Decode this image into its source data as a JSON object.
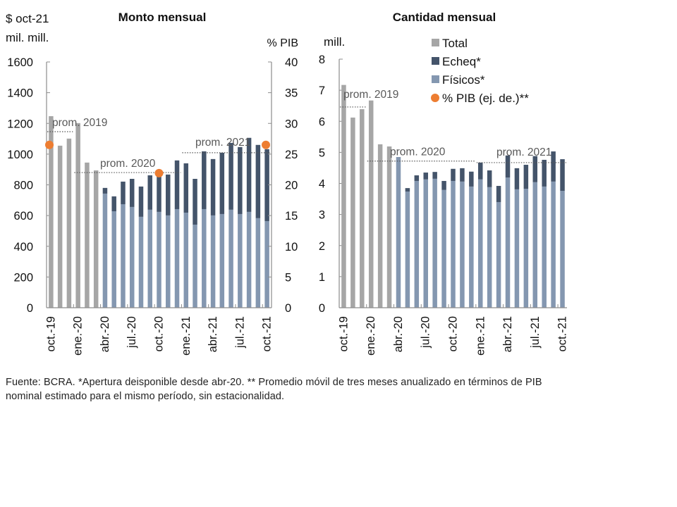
{
  "chart_data": [
    {
      "type": "bar",
      "stacked": true,
      "title": "Monto mensual",
      "ylabel": "$ oct-21\nmil. mill.",
      "ylabel_lines": [
        "$ oct-21",
        "mil. mill."
      ],
      "y2label": "% PIB",
      "ylim": [
        0,
        1600
      ],
      "yticks": [
        0,
        200,
        400,
        600,
        800,
        1000,
        1200,
        1400,
        1600
      ],
      "y2lim": [
        0,
        40
      ],
      "y2ticks": [
        0,
        5,
        10,
        15,
        20,
        25,
        30,
        35,
        40
      ],
      "grid": false,
      "categories": [
        "oct-19",
        "nov-19",
        "dic-19",
        "ene-20",
        "feb-20",
        "mar-20",
        "abr-20",
        "may-20",
        "jun-20",
        "jul-20",
        "ago-20",
        "sep-20",
        "oct-20",
        "nov-20",
        "dic-20",
        "ene-21",
        "feb-21",
        "mar-21",
        "abr-21",
        "may-21",
        "jun-21",
        "jul-21",
        "ago-21",
        "sep-21",
        "oct-21"
      ],
      "xtick_labels": [
        "oct.-19",
        "ene.-20",
        "abr.-20",
        "jul.-20",
        "oct.-20",
        "ene.-21",
        "abr.-21",
        "jul.-21",
        "oct.-21"
      ],
      "xtick_indices": [
        0,
        3,
        6,
        9,
        12,
        15,
        18,
        21,
        24
      ],
      "series": [
        {
          "name": "Total",
          "color": "#a6a6a6",
          "values": [
            1247,
            1055,
            1101,
            1202,
            945,
            894,
            null,
            null,
            null,
            null,
            null,
            null,
            null,
            null,
            null,
            null,
            null,
            null,
            null,
            null,
            null,
            null,
            null,
            null,
            null
          ]
        },
        {
          "name": "Físicos*",
          "color": "#8497b0",
          "values": [
            null,
            null,
            null,
            null,
            null,
            null,
            743,
            628,
            674,
            656,
            592,
            638,
            624,
            601,
            642,
            619,
            541,
            642,
            601,
            610,
            638,
            610,
            624,
            583,
            564
          ]
        },
        {
          "name": "Echeq*",
          "color": "#44546a",
          "values": [
            null,
            null,
            null,
            null,
            null,
            null,
            37,
            97,
            147,
            183,
            197,
            224,
            256,
            266,
            317,
            321,
            298,
            376,
            367,
            399,
            435,
            436,
            482,
            477,
            468
          ]
        }
      ],
      "pib_points": {
        "name": "% PIB (ej. de.)**",
        "color": "#ed7d31",
        "axis": "y2",
        "indices": [
          0,
          12,
          24
        ],
        "values": [
          26.5,
          21.9,
          26.5
        ]
      },
      "averages": [
        {
          "label": "prom. 2019",
          "value": 1146,
          "from": 0,
          "to": 2
        },
        {
          "label": "prom. 2020",
          "value": 880,
          "from": 3,
          "to": 14
        },
        {
          "label": "prom. 2021",
          "value": 1009,
          "from": 15,
          "to": 24
        }
      ]
    },
    {
      "type": "bar",
      "stacked": true,
      "title": "Cantidad mensual",
      "ylabel": "mill.",
      "ylim": [
        0,
        8
      ],
      "yticks": [
        0,
        1,
        2,
        3,
        4,
        5,
        6,
        7,
        8
      ],
      "grid": false,
      "categories": [
        "oct-19",
        "nov-19",
        "dic-19",
        "ene-20",
        "feb-20",
        "mar-20",
        "abr-20",
        "may-20",
        "jun-20",
        "jul-20",
        "ago-20",
        "sep-20",
        "oct-20",
        "nov-20",
        "dic-20",
        "ene-21",
        "feb-21",
        "mar-21",
        "abr-21",
        "may-21",
        "jun-21",
        "jul-21",
        "ago-21",
        "sep-21",
        "oct-21"
      ],
      "xtick_labels": [
        "oct.-19",
        "ene.-20",
        "abr.-20",
        "jul.-20",
        "oct.-20",
        "ene.-21",
        "abr.-21",
        "jul.-21",
        "oct.-21"
      ],
      "xtick_indices": [
        0,
        3,
        6,
        9,
        12,
        15,
        18,
        21,
        24
      ],
      "series": [
        {
          "name": "Total",
          "color": "#a6a6a6",
          "values": [
            7.17,
            6.12,
            6.39,
            6.67,
            5.26,
            5.19,
            null,
            null,
            null,
            null,
            null,
            null,
            null,
            null,
            null,
            null,
            null,
            null,
            null,
            null,
            null,
            null,
            null,
            null,
            null
          ]
        },
        {
          "name": "Físicos*",
          "color": "#8497b0",
          "values": [
            null,
            null,
            null,
            null,
            null,
            null,
            4.85,
            3.74,
            4.08,
            4.13,
            4.15,
            3.79,
            4.08,
            4.06,
            3.9,
            4.13,
            3.88,
            3.4,
            4.19,
            3.81,
            3.83,
            4.04,
            3.9,
            4.06,
            3.76
          ]
        },
        {
          "name": "Echeq*",
          "color": "#44546a",
          "values": [
            null,
            null,
            null,
            null,
            null,
            null,
            0.0,
            0.11,
            0.18,
            0.22,
            0.22,
            0.29,
            0.39,
            0.43,
            0.48,
            0.54,
            0.54,
            0.52,
            0.71,
            0.68,
            0.77,
            0.84,
            0.86,
            0.97,
            1.02
          ]
        }
      ],
      "averages": [
        {
          "label": "prom. 2019",
          "value": 6.46,
          "from": 0,
          "to": 2
        },
        {
          "label": "prom. 2020",
          "value": 4.72,
          "from": 3,
          "to": 14
        },
        {
          "label": "prom. 2021",
          "value": 4.67,
          "from": 15,
          "to": 24
        }
      ],
      "legend": {
        "placement": "top-right",
        "items": [
          {
            "label": "Total",
            "color": "#a6a6a6",
            "shape": "square"
          },
          {
            "label": "Echeq*",
            "color": "#44546a",
            "shape": "square"
          },
          {
            "label": "Físicos*",
            "color": "#8497b0",
            "shape": "square"
          },
          {
            "label": "% PIB (ej. de.)**",
            "color": "#ed7d31",
            "shape": "circle"
          }
        ]
      }
    }
  ],
  "footnote": "Fuente: BCRA. *Apertura deisponible desde abr-20.  ** Promedio móvil de tres meses anualizado en términos de PIB nominal estimado para el mismo período, sin estacionalidad."
}
